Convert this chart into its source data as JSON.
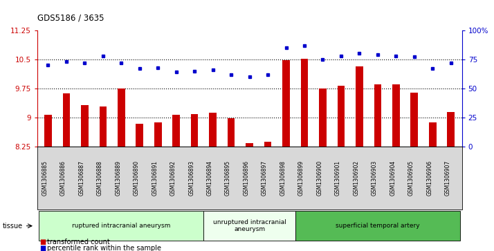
{
  "title": "GDS5186 / 3635",
  "samples": [
    "GSM1306885",
    "GSM1306886",
    "GSM1306887",
    "GSM1306888",
    "GSM1306889",
    "GSM1306890",
    "GSM1306891",
    "GSM1306892",
    "GSM1306893",
    "GSM1306894",
    "GSM1306895",
    "GSM1306896",
    "GSM1306897",
    "GSM1306898",
    "GSM1306899",
    "GSM1306900",
    "GSM1306901",
    "GSM1306902",
    "GSM1306903",
    "GSM1306904",
    "GSM1306905",
    "GSM1306906",
    "GSM1306907"
  ],
  "bar_values": [
    9.08,
    9.62,
    9.32,
    9.28,
    9.75,
    8.85,
    8.87,
    9.08,
    9.1,
    9.12,
    8.98,
    8.35,
    8.38,
    10.47,
    10.52,
    9.75,
    9.82,
    10.32,
    9.85,
    9.85,
    9.65,
    8.88,
    9.15
  ],
  "percentile_values": [
    70,
    73,
    72,
    78,
    72,
    67,
    68,
    64,
    65,
    66,
    62,
    60,
    62,
    85,
    87,
    75,
    78,
    80,
    79,
    78,
    77,
    67,
    72
  ],
  "ylim_left": [
    8.25,
    11.25
  ],
  "ylim_right": [
    0,
    100
  ],
  "yticks_left": [
    8.25,
    9.0,
    9.75,
    10.5,
    11.25
  ],
  "ytick_labels_left": [
    "8.25",
    "9",
    "9.75",
    "10.5",
    "11.25"
  ],
  "yticks_right": [
    0,
    25,
    50,
    75,
    100
  ],
  "ytick_labels_right": [
    "0",
    "25",
    "50",
    "75",
    "100%"
  ],
  "bar_color": "#cc0000",
  "dot_color": "#0000cc",
  "groups": [
    {
      "label": "ruptured intracranial aneurysm",
      "start": 0,
      "end": 9,
      "color": "#ccffcc"
    },
    {
      "label": "unruptured intracranial\naneurysm",
      "start": 9,
      "end": 14,
      "color": "#eeffee"
    },
    {
      "label": "superficial temporal artery",
      "start": 14,
      "end": 23,
      "color": "#55bb55"
    }
  ],
  "tissue_label": "tissue",
  "legend_bar_label": "transformed count",
  "legend_dot_label": "percentile rank within the sample",
  "tick_bg_color": "#d8d8d8",
  "plot_bg": "#ffffff",
  "dotted_lines": [
    9.0,
    9.75,
    10.5
  ]
}
